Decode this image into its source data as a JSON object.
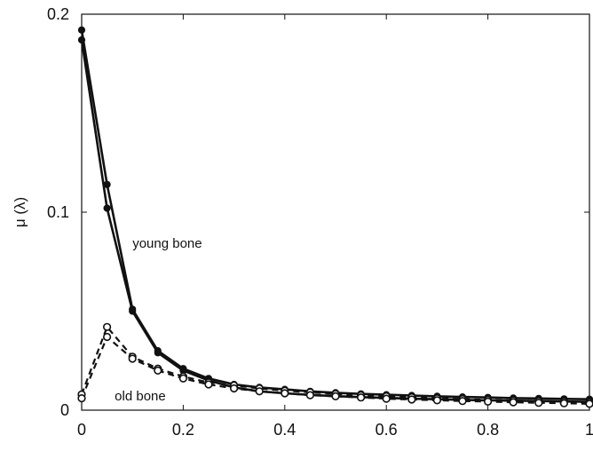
{
  "chart_data": {
    "type": "line",
    "title": "",
    "xlabel": "",
    "ylabel": "μ (λ)",
    "xlim": [
      0,
      1
    ],
    "ylim": [
      0,
      0.2
    ],
    "xticks": [
      "0",
      "0.2",
      "0.4",
      "0.6",
      "0.8",
      "1"
    ],
    "yticks": [
      "0",
      "0.1",
      "0.2"
    ],
    "grid": false,
    "annotations": [
      {
        "text": "young bone"
      },
      {
        "text": "old bone"
      }
    ],
    "series": [
      {
        "group": "young bone",
        "line": "solid",
        "marker": "filled-circle",
        "x": [
          0,
          0.05,
          0.1,
          0.15,
          0.2,
          0.25,
          0.3,
          0.35,
          0.4,
          0.45,
          0.5,
          0.55,
          0.6,
          0.65,
          0.7,
          0.75,
          0.8,
          0.85,
          0.9,
          0.95,
          1
        ],
        "y": [
          0.192,
          0.114,
          0.051,
          0.03,
          0.021,
          0.016,
          0.013,
          0.0115,
          0.0105,
          0.0095,
          0.0088,
          0.0082,
          0.0078,
          0.0074,
          0.007,
          0.0067,
          0.0064,
          0.0061,
          0.0059,
          0.0057,
          0.0055
        ]
      },
      {
        "group": "young bone",
        "line": "solid",
        "marker": "filled-circle",
        "x": [
          0,
          0.05,
          0.1,
          0.15,
          0.2,
          0.25,
          0.3,
          0.35,
          0.4,
          0.45,
          0.5,
          0.55,
          0.6,
          0.65,
          0.7,
          0.75,
          0.8,
          0.85,
          0.9,
          0.95,
          1
        ],
        "y": [
          0.187,
          0.102,
          0.05,
          0.029,
          0.02,
          0.015,
          0.0115,
          0.0095,
          0.0085,
          0.0077,
          0.0071,
          0.0066,
          0.0062,
          0.0058,
          0.0055,
          0.0052,
          0.005,
          0.0048,
          0.0046,
          0.0044,
          0.0042
        ]
      },
      {
        "group": "old bone",
        "line": "dashed",
        "marker": "open-circle",
        "x": [
          0,
          0.05,
          0.1,
          0.15,
          0.2,
          0.25,
          0.3,
          0.35,
          0.4,
          0.45,
          0.5,
          0.55,
          0.6,
          0.65,
          0.7,
          0.75,
          0.8,
          0.85,
          0.9,
          0.95,
          1
        ],
        "y": [
          0.008,
          0.042,
          0.027,
          0.021,
          0.017,
          0.014,
          0.0125,
          0.011,
          0.0098,
          0.009,
          0.0082,
          0.0075,
          0.007,
          0.0065,
          0.006,
          0.0056,
          0.0052,
          0.0049,
          0.0046,
          0.0043,
          0.004
        ]
      },
      {
        "group": "old bone",
        "line": "dashed",
        "marker": "open-circle",
        "x": [
          0,
          0.05,
          0.1,
          0.15,
          0.2,
          0.25,
          0.3,
          0.35,
          0.4,
          0.45,
          0.5,
          0.55,
          0.6,
          0.65,
          0.7,
          0.75,
          0.8,
          0.85,
          0.9,
          0.95,
          1
        ],
        "y": [
          0.006,
          0.037,
          0.026,
          0.02,
          0.016,
          0.013,
          0.011,
          0.0095,
          0.0085,
          0.0076,
          0.007,
          0.0064,
          0.0058,
          0.0054,
          0.005,
          0.0046,
          0.0043,
          0.004,
          0.0037,
          0.0035,
          0.0032
        ]
      }
    ]
  }
}
